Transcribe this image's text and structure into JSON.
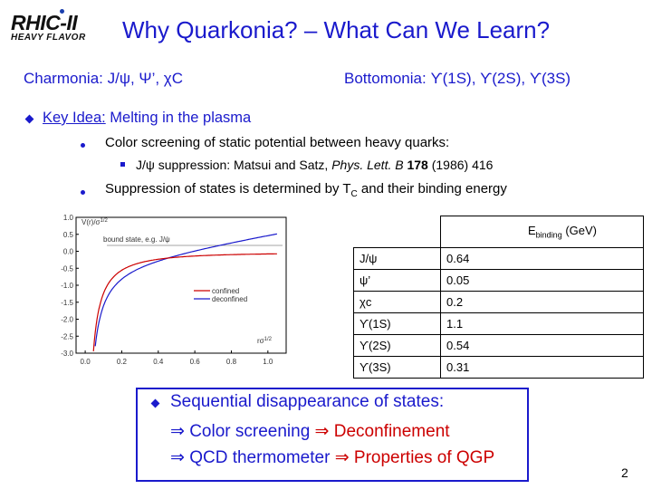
{
  "logo": {
    "line1": "RHIC-II",
    "line2": "HEAVY FLAVOR"
  },
  "title": "Why Quarkonia? – What Can We Learn?",
  "sub_left": "Charmonia: J/ψ, Ψ’, χC",
  "sub_right": "Bottomonia: ϒ(1S), ϒ(2S), ϒ(3S)",
  "key_idea": {
    "label": "Key Idea:",
    "text": " Melting  in the plasma"
  },
  "bullets": {
    "b1": "Color screening of static potential between heavy quarks:",
    "b2_pre": "J/ψ suppression: Matsui and Satz, ",
    "b2_journal": "Phys. Lett. B",
    "b2_vol": " 178",
    "b2_post": " (1986) 416",
    "b3_pre": "Suppression of states is determined by T",
    "b3_sub": "C",
    "b3_post": " and their binding energy"
  },
  "plot": {
    "ylabel": "V(r)/σ",
    "ylabel_sup": "1/2",
    "xlabel": "rσ",
    "xlabel_sup": "1/2",
    "bound_label": "bound state, e.g. J/ψ",
    "legend_confined": "confined",
    "legend_deconfined": "deconfined",
    "yticks": [
      "1.0",
      "0.5",
      "0.0",
      "-0.5",
      "-1.0",
      "-1.5",
      "-2.0",
      "-2.5",
      "-3.0"
    ],
    "xticks": [
      "0.0",
      "0.2",
      "0.4",
      "0.6",
      "0.8",
      "1.0"
    ],
    "colors": {
      "confined": "#1a1acc",
      "deconfined": "#cc0000"
    }
  },
  "table": {
    "header_pre": "E",
    "header_sub": "binding",
    "header_post": " (GeV)",
    "rows": [
      {
        "state": "J/ψ",
        "energy": "0.64"
      },
      {
        "state": "ψ’",
        "energy": "0.05"
      },
      {
        "state": "χc",
        "energy": "0.2"
      },
      {
        "state": "ϒ(1S)",
        "energy": "1.1"
      },
      {
        "state": "ϒ(2S)",
        "energy": "0.54"
      },
      {
        "state": "ϒ(3S)",
        "energy": "0.31"
      }
    ]
  },
  "summary": {
    "line1": "Sequential disappearance of states:",
    "line2_a": "Color screening ",
    "line2_b": "Deconfinement",
    "line3_a": "QCD thermometer ",
    "line3_b": "Properties of QGP",
    "arrow": "⇒"
  },
  "page_number": "2"
}
